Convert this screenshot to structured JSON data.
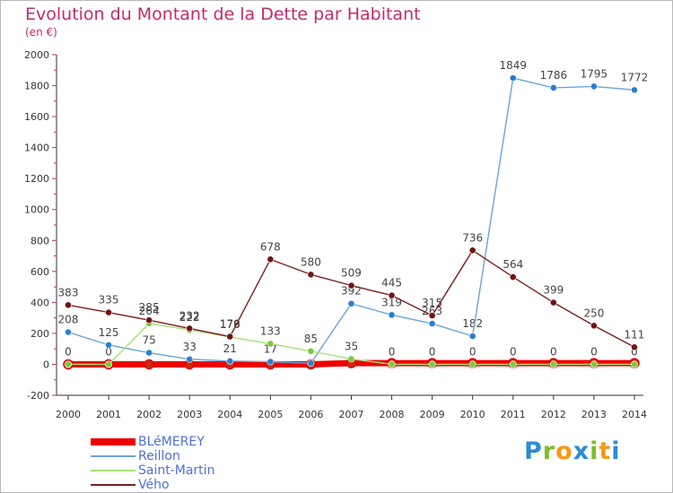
{
  "title": "Evolution du Montant de la Dette par Habitant",
  "unit": "(en €)",
  "logo": {
    "letters": [
      "P",
      "r",
      "o",
      "x",
      "i",
      "t",
      "i"
    ],
    "colors": [
      "#2c8bd6",
      "#7cbf2a",
      "#f29a1a",
      "#2c8bd6",
      "#7cbf2a",
      "#f29a1a",
      "#2c8bd6"
    ]
  },
  "chart_data": {
    "type": "line",
    "x": [
      "2000",
      "2001",
      "2002",
      "2003",
      "2004",
      "2005",
      "2006",
      "2007",
      "2008",
      "2009",
      "2010",
      "2011",
      "2012",
      "2013",
      "2014"
    ],
    "ylim": [
      -200,
      2000
    ],
    "yticks": [
      "-200",
      "0",
      "200",
      "400",
      "600",
      "800",
      "1000",
      "1200",
      "1400",
      "1600",
      "1800",
      "2000"
    ],
    "grid": false,
    "legend_position": "bottom-left",
    "series": [
      {
        "name": "BLéMEREY",
        "color": "#ee0000",
        "values": [
          0,
          0,
          0,
          0,
          0,
          0,
          0,
          8,
          8,
          8,
          8,
          8,
          8,
          8,
          8
        ],
        "labels": [],
        "marker": "#cc2a10"
      },
      {
        "name": "Reillon",
        "color": "#6ba6d8",
        "values": [
          208,
          125,
          75,
          33,
          21,
          17,
          7,
          392,
          319,
          263,
          182,
          1849,
          1786,
          1795,
          1772
        ],
        "labels": [
          "208",
          "125",
          "75",
          "33",
          "21",
          "17",
          "",
          "392",
          "319",
          "263",
          "182",
          "1849",
          "1786",
          "1795",
          "1772"
        ],
        "marker": "#2a7ed0"
      },
      {
        "name": "Saint-Martin",
        "color": "#a6e07a",
        "values": [
          0,
          0,
          264,
          222,
          176,
          133,
          85,
          35,
          0,
          0,
          0,
          0,
          0,
          0,
          0
        ],
        "labels": [
          "0",
          "0",
          "264",
          "222",
          "176",
          "133",
          "85",
          "35",
          "0",
          "0",
          "0",
          "0",
          "0",
          "0",
          "0"
        ],
        "marker": "#7cc83a"
      },
      {
        "name": "Vého",
        "color": "#7a1e1e",
        "values": [
          383,
          335,
          285,
          232,
          179,
          678,
          580,
          509,
          445,
          315,
          736,
          564,
          399,
          250,
          111
        ],
        "labels": [
          "383",
          "335",
          "285",
          "232",
          "179",
          "678",
          "580",
          "509",
          "445",
          "315",
          "736",
          "564",
          "399",
          "250",
          "111"
        ],
        "marker": "#6e1414"
      }
    ]
  }
}
